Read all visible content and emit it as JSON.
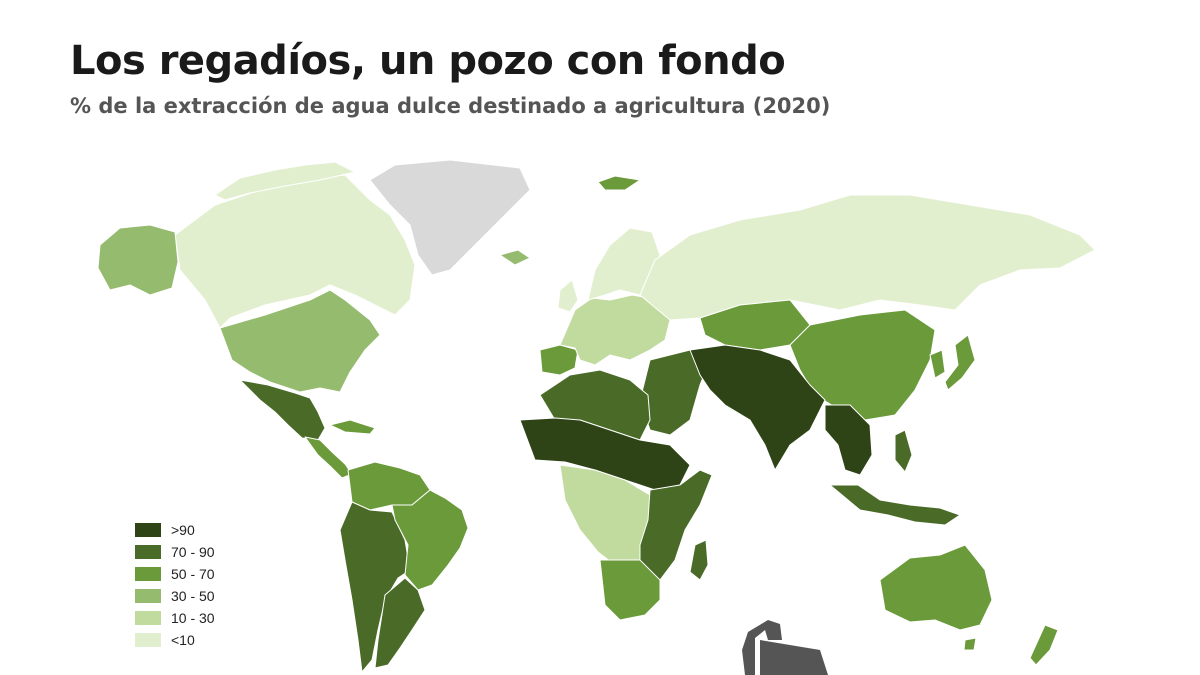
{
  "header": {
    "title": "Los regadíos, un pozo con fondo",
    "subtitle": "% de la extracción de agua dulce destinado a agricultura (2020)"
  },
  "legend": {
    "items": [
      {
        "label": ">90",
        "color": "#2f4416"
      },
      {
        "label": "70 - 90",
        "color": "#4a6b28"
      },
      {
        "label": "50 - 70",
        "color": "#6a9a3a"
      },
      {
        "label": "30 - 50",
        "color": "#94bb6e"
      },
      {
        "label": "10 - 30",
        "color": "#c1db9f"
      },
      {
        "label": "<10",
        "color": "#e2efcf"
      }
    ],
    "no_data_color": "#d9d9d9"
  },
  "map": {
    "region_classes": [
      {
        "region": "Greenland",
        "class": "no_data"
      },
      {
        "region": "Canada",
        "class": "<10"
      },
      {
        "region": "Alaska",
        "class": "30 - 50"
      },
      {
        "region": "United States",
        "class": "30 - 50"
      },
      {
        "region": "Mexico",
        "class": "70 - 90"
      },
      {
        "region": "Central America",
        "class": "50 - 70"
      },
      {
        "region": "Colombia / Venezuela",
        "class": "50 - 70"
      },
      {
        "region": "Peru / Bolivia / Chile",
        "class": "70 - 90"
      },
      {
        "region": "Brazil",
        "class": "50 - 70"
      },
      {
        "region": "Argentina",
        "class": "70 - 90"
      },
      {
        "region": "Europe",
        "class": "10 - 30"
      },
      {
        "region": "Scandinavia",
        "class": "<10"
      },
      {
        "region": "Iberia",
        "class": "50 - 70"
      },
      {
        "region": "Russia",
        "class": "<10"
      },
      {
        "region": "Central Asia",
        "class": "50 - 70"
      },
      {
        "region": "Mongolia / China",
        "class": "50 - 70"
      },
      {
        "region": "Japan / Korea",
        "class": "50 - 70"
      },
      {
        "region": "North Africa",
        "class": "70 - 90"
      },
      {
        "region": "Sahel",
        "class": ">90"
      },
      {
        "region": "Middle East",
        "class": "70 - 90"
      },
      {
        "region": "Iran / Pakistan / India",
        "class": ">90"
      },
      {
        "region": "Southeast Asia",
        "class": ">90"
      },
      {
        "region": "Central Africa",
        "class": "10 - 30"
      },
      {
        "region": "East Africa",
        "class": "70 - 90"
      },
      {
        "region": "Southern Africa",
        "class": "50 - 70"
      },
      {
        "region": "Madagascar",
        "class": "70 - 90"
      },
      {
        "region": "Indonesia / Philippines",
        "class": "70 - 90"
      },
      {
        "region": "Australia",
        "class": "50 - 70"
      },
      {
        "region": "New Zealand",
        "class": "50 - 70"
      }
    ]
  }
}
